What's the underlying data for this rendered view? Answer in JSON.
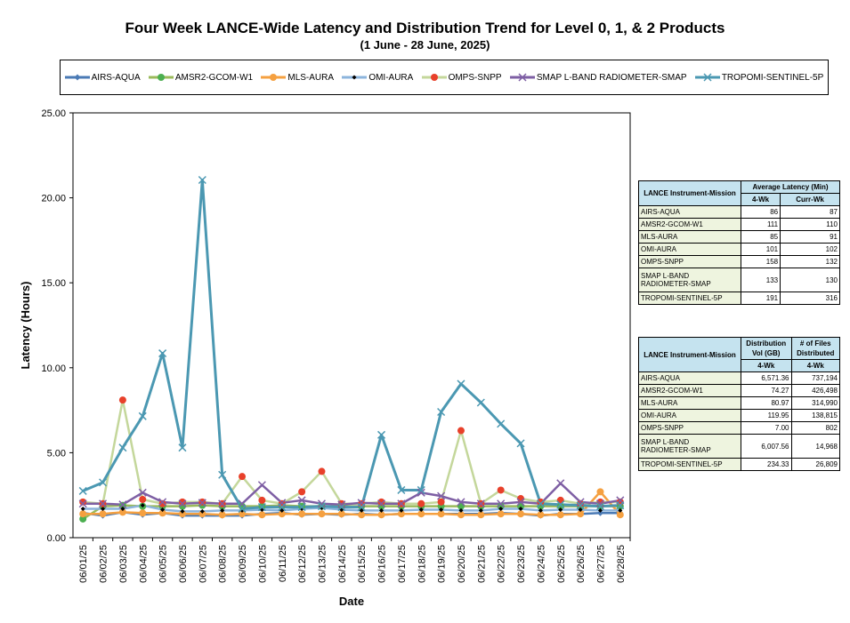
{
  "title": "Four Week LANCE-Wide Latency and Distribution Trend for Level 0, 1, & 2 Products",
  "subtitle": "(1 June  -  28 June, 2025)",
  "chart_data": {
    "type": "line",
    "title": "Four Week LANCE-Wide Latency and Distribution Trend for Level 0, 1, & 2 Products",
    "xlabel": "Date",
    "ylabel": "Latency (Hours)",
    "ylim": [
      0,
      25
    ],
    "yticks": [
      "0.00",
      "5.00",
      "10.00",
      "15.00",
      "20.00",
      "25.00"
    ],
    "categories": [
      "06/01/25",
      "06/02/25",
      "06/03/25",
      "06/04/25",
      "06/05/25",
      "06/06/25",
      "06/07/25",
      "06/08/25",
      "06/09/25",
      "06/10/25",
      "06/11/25",
      "06/12/25",
      "06/13/25",
      "06/14/25",
      "06/15/25",
      "06/16/25",
      "06/17/25",
      "06/18/25",
      "06/19/25",
      "06/20/25",
      "06/21/25",
      "06/22/25",
      "06/23/25",
      "06/24/25",
      "06/25/25",
      "06/26/25",
      "06/27/25",
      "06/28/25"
    ],
    "legend_position": "top",
    "series": [
      {
        "name": "AIRS-AQUA",
        "color": "#4a7ab5",
        "marker": "diamond",
        "values": [
          1.45,
          1.3,
          1.5,
          1.35,
          1.45,
          1.3,
          1.3,
          1.3,
          1.3,
          1.4,
          1.45,
          1.35,
          1.4,
          1.35,
          1.4,
          1.35,
          1.4,
          1.4,
          1.4,
          1.4,
          1.4,
          1.45,
          1.4,
          1.3,
          1.4,
          1.4,
          1.45,
          1.45
        ]
      },
      {
        "name": "AMSR2-GCOM-W1",
        "color": "#9aba5a",
        "marker": "circle",
        "markerColor": "#4caf50",
        "values": [
          1.1,
          1.85,
          1.9,
          1.85,
          1.85,
          1.85,
          1.9,
          1.85,
          1.85,
          1.85,
          1.9,
          1.85,
          1.85,
          1.85,
          1.85,
          1.85,
          1.85,
          1.85,
          1.85,
          1.85,
          1.85,
          1.85,
          1.85,
          1.85,
          1.85,
          1.85,
          1.85,
          1.85
        ]
      },
      {
        "name": "MLS-AURA",
        "color": "#f5a040",
        "marker": "circle",
        "values": [
          1.4,
          1.4,
          1.5,
          1.45,
          1.45,
          1.4,
          1.4,
          1.35,
          1.4,
          1.35,
          1.4,
          1.4,
          1.4,
          1.4,
          1.35,
          1.35,
          1.4,
          1.4,
          1.4,
          1.35,
          1.35,
          1.4,
          1.4,
          1.35,
          1.35,
          1.4,
          2.7,
          1.35
        ]
      },
      {
        "name": "OMI-AURA",
        "color": "#8cb4dc",
        "marker": "diamond-small",
        "values": [
          1.7,
          1.7,
          1.7,
          1.9,
          1.65,
          1.55,
          1.55,
          1.6,
          1.6,
          1.65,
          1.6,
          1.7,
          1.75,
          1.65,
          1.6,
          1.6,
          1.6,
          1.65,
          1.65,
          1.6,
          1.6,
          1.7,
          1.7,
          1.6,
          1.65,
          1.65,
          1.6,
          1.6
        ]
      },
      {
        "name": "OMPS-SNPP",
        "color": "#c4d79b",
        "marker": "circle",
        "markerColor": "#e8402a",
        "values": [
          2.1,
          2.0,
          8.1,
          2.25,
          2.0,
          2.1,
          2.1,
          2.0,
          3.6,
          2.2,
          2.0,
          2.7,
          3.9,
          2.0,
          2.0,
          2.1,
          2.0,
          2.0,
          2.1,
          6.3,
          2.0,
          2.8,
          2.3,
          2.1,
          2.2,
          2.0,
          2.1,
          2.1
        ]
      },
      {
        "name": "SMAP L-BAND RADIOMETER-SMAP",
        "color": "#7e5fa4",
        "marker": "x",
        "values": [
          2.0,
          2.0,
          1.95,
          2.65,
          2.1,
          2.0,
          2.05,
          2.0,
          2.0,
          3.1,
          2.05,
          2.2,
          2.0,
          1.95,
          2.05,
          2.0,
          2.0,
          2.65,
          2.45,
          2.1,
          2.0,
          2.0,
          2.1,
          2.0,
          3.2,
          2.1,
          2.0,
          2.2
        ]
      },
      {
        "name": "TROPOMI-SENTINEL-5P",
        "color": "#4b98b2",
        "marker": "x",
        "values": [
          2.75,
          3.25,
          5.3,
          7.15,
          10.85,
          5.3,
          21.05,
          3.7,
          1.7,
          1.8,
          1.8,
          1.8,
          1.85,
          1.8,
          1.8,
          6.05,
          2.8,
          2.8,
          7.4,
          9.05,
          7.95,
          6.7,
          5.55,
          2.0,
          1.95,
          1.9,
          1.85,
          1.9
        ]
      }
    ]
  },
  "latency_table": {
    "header_mission": "LANCE Instrument-Mission",
    "header_avg": "Average Latency (Min)",
    "col1": "4-Wk",
    "col2": "Curr-Wk",
    "rows": [
      {
        "name": "AIRS-AQUA",
        "v1": "86",
        "v2": "87"
      },
      {
        "name": "AMSR2-GCOM-W1",
        "v1": "111",
        "v2": "110"
      },
      {
        "name": "MLS-AURA",
        "v1": "85",
        "v2": "91"
      },
      {
        "name": "OMI-AURA",
        "v1": "101",
        "v2": "102"
      },
      {
        "name": "OMPS-SNPP",
        "v1": "158",
        "v2": "132"
      },
      {
        "name": "SMAP L-BAND RADIOMETER-SMAP",
        "v1": "133",
        "v2": "130"
      },
      {
        "name": "TROPOMI-SENTINEL-5P",
        "v1": "191",
        "v2": "316"
      }
    ]
  },
  "distribution_table": {
    "header_mission": "LANCE Instrument-Mission",
    "header_vol": "Distribution Vol (GB)",
    "header_files": "# of Files Distributed",
    "col1": "4-Wk",
    "col2": "4-Wk",
    "rows": [
      {
        "name": "AIRS-AQUA",
        "v1": "6,571.36",
        "v2": "737,194"
      },
      {
        "name": "AMSR2-GCOM-W1",
        "v1": "74.27",
        "v2": "426,498"
      },
      {
        "name": "MLS-AURA",
        "v1": "80.97",
        "v2": "314,990"
      },
      {
        "name": "OMI-AURA",
        "v1": "119.95",
        "v2": "138,815"
      },
      {
        "name": "OMPS-SNPP",
        "v1": "7.00",
        "v2": "802"
      },
      {
        "name": "SMAP L-BAND RADIOMETER-SMAP",
        "v1": "6,007.56",
        "v2": "14,968"
      },
      {
        "name": "TROPOMI-SENTINEL-5P",
        "v1": "234.33",
        "v2": "26,809"
      }
    ]
  }
}
